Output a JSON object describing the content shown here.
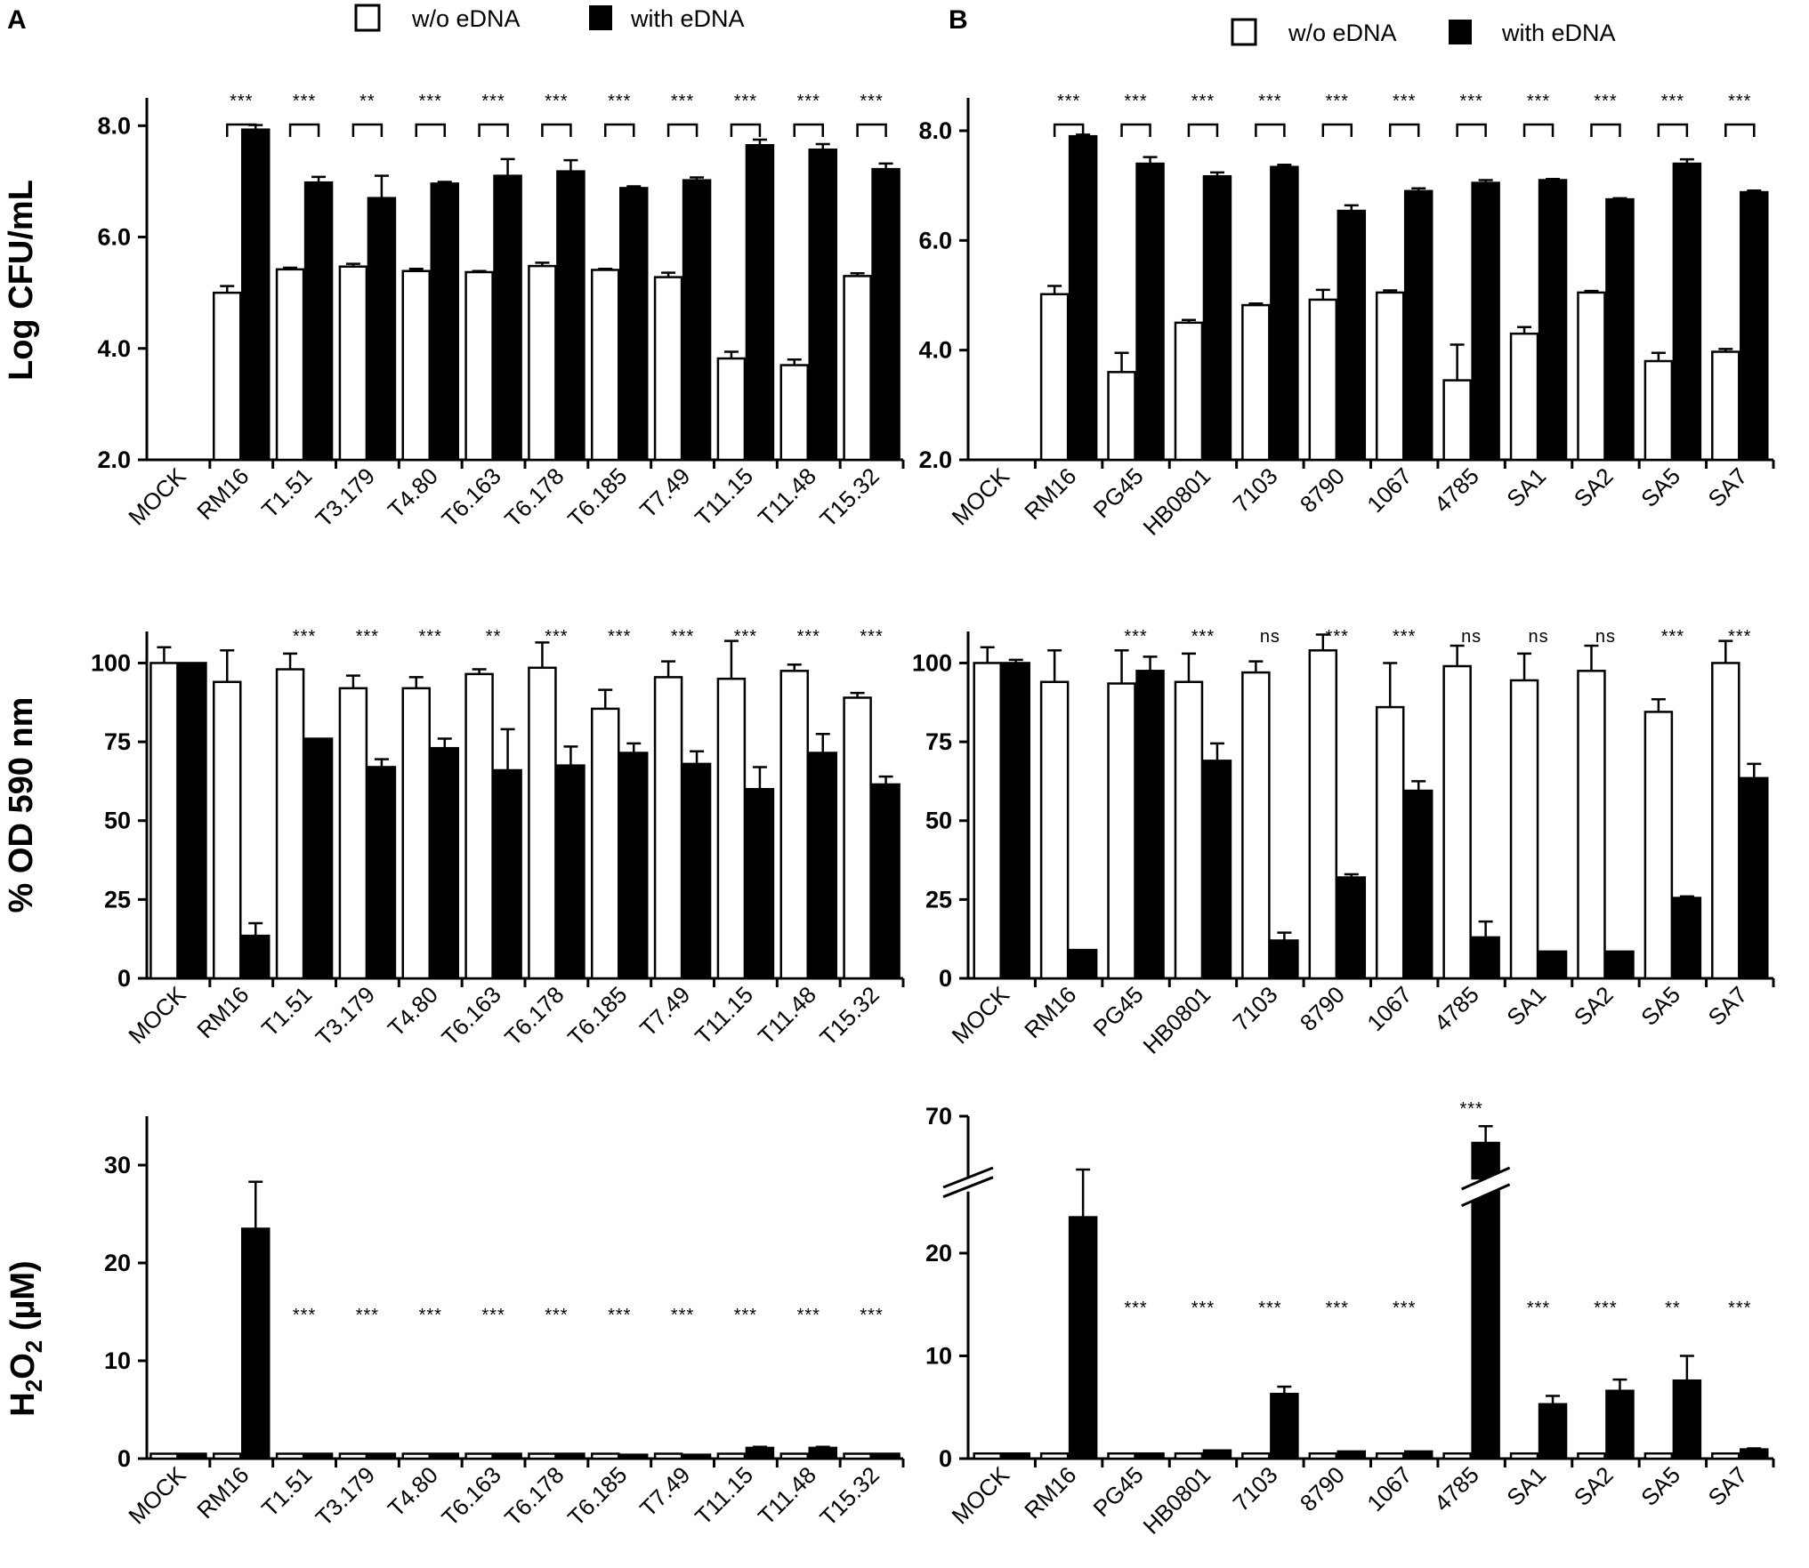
{
  "legend": {
    "without": "w/o eDNA",
    "with": "with eDNA"
  },
  "panels": {
    "A": "A",
    "B": "B"
  },
  "colors": {
    "without_fill": "#ffffff",
    "with_fill": "#000000",
    "axis": "#000000"
  },
  "chart_data": [
    {
      "id": "A-cfu",
      "type": "bar",
      "panel": "A",
      "ylabel": "Log CFU/mL",
      "ylim": [
        2,
        8.5
      ],
      "yticks": [
        2,
        4,
        6,
        8
      ],
      "ytick_labels": [
        "2.0",
        "4.0",
        "6.0",
        "8.0"
      ],
      "categories": [
        "MOCK",
        "RM16",
        "T1.51",
        "T3.179",
        "T4.80",
        "T6.163",
        "T6.178",
        "T6.185",
        "T7.49",
        "T11.15",
        "T11.48",
        "T15.32"
      ],
      "series": [
        {
          "name": "w/o eDNA",
          "values": [
            null,
            5.0,
            5.42,
            5.47,
            5.39,
            5.37,
            5.48,
            5.41,
            5.28,
            3.82,
            3.7,
            5.3
          ],
          "errors": [
            0,
            0.12,
            0.03,
            0.05,
            0.04,
            0.02,
            0.06,
            0.02,
            0.08,
            0.12,
            0.1,
            0.05
          ]
        },
        {
          "name": "with eDNA",
          "values": [
            null,
            7.93,
            6.98,
            6.7,
            6.96,
            7.1,
            7.18,
            6.88,
            7.02,
            7.65,
            7.57,
            7.22
          ],
          "errors": [
            0,
            0.08,
            0.1,
            0.4,
            0.03,
            0.3,
            0.2,
            0.03,
            0.05,
            0.1,
            0.1,
            0.1
          ]
        }
      ],
      "significance": {
        "position": "brackets",
        "labels": [
          "",
          "***",
          "***",
          "**",
          "***",
          "***",
          "***",
          "***",
          "***",
          "***",
          "***",
          "***"
        ]
      }
    },
    {
      "id": "B-cfu",
      "type": "bar",
      "panel": "B",
      "ylabel": "",
      "ylim": [
        2,
        8.6
      ],
      "yticks": [
        2,
        4,
        6,
        8
      ],
      "ytick_labels": [
        "2.0",
        "4.0",
        "6.0",
        "8.0"
      ],
      "categories": [
        "MOCK",
        "RM16",
        "PG45",
        "HB0801",
        "7103",
        "8790",
        "1067",
        "4785",
        "SA1",
        "SA2",
        "SA5",
        "SA7"
      ],
      "series": [
        {
          "name": "w/o eDNA",
          "values": [
            null,
            5.02,
            3.6,
            4.5,
            4.82,
            4.92,
            5.05,
            3.45,
            4.3,
            5.05,
            3.8,
            3.97
          ],
          "errors": [
            0,
            0.15,
            0.35,
            0.05,
            0.03,
            0.18,
            0.04,
            0.65,
            0.12,
            0.03,
            0.15,
            0.05
          ]
        },
        {
          "name": "with eDNA",
          "values": [
            null,
            7.9,
            7.4,
            7.17,
            7.34,
            6.54,
            6.9,
            7.05,
            7.1,
            6.75,
            7.4,
            6.88
          ],
          "errors": [
            0,
            0.03,
            0.12,
            0.07,
            0.04,
            0.1,
            0.05,
            0.05,
            0.02,
            0.02,
            0.08,
            0.03
          ]
        }
      ],
      "significance": {
        "position": "brackets",
        "labels": [
          "",
          "***",
          "***",
          "***",
          "***",
          "***",
          "***",
          "***",
          "***",
          "***",
          "***",
          "***"
        ]
      }
    },
    {
      "id": "A-od",
      "type": "bar",
      "panel": "A",
      "ylabel": "% OD 590 nm",
      "ylim": [
        0,
        110
      ],
      "yticks": [
        0,
        25,
        50,
        75,
        100
      ],
      "ytick_labels": [
        "0",
        "25",
        "50",
        "75",
        "100"
      ],
      "categories": [
        "MOCK",
        "RM16",
        "T1.51",
        "T3.179",
        "T4.80",
        "T6.163",
        "T6.178",
        "T6.185",
        "T7.49",
        "T11.15",
        "T11.48",
        "T15.32"
      ],
      "series": [
        {
          "name": "w/o eDNA",
          "values": [
            100,
            94,
            98,
            92,
            92,
            96.5,
            98.5,
            85.5,
            95.5,
            95,
            97.5,
            89
          ],
          "errors": [
            5,
            10,
            5,
            4,
            3.5,
            1.5,
            8,
            6,
            5,
            12,
            2,
            1.5
          ]
        },
        {
          "name": "with eDNA",
          "values": [
            100,
            13.5,
            76,
            67,
            73,
            66,
            67.5,
            71.5,
            68,
            60,
            71.5,
            61.5
          ],
          "errors": [
            0,
            4,
            0,
            2.5,
            3,
            13,
            6,
            3,
            4,
            7,
            6,
            2.5
          ]
        }
      ],
      "significance": {
        "position": "top",
        "labels": [
          "",
          "",
          "***",
          "***",
          "***",
          "**",
          "***",
          "***",
          "***",
          "***",
          "***",
          "***"
        ]
      }
    },
    {
      "id": "B-od",
      "type": "bar",
      "panel": "B",
      "ylabel": "",
      "ylim": [
        0,
        110
      ],
      "yticks": [
        0,
        25,
        50,
        75,
        100
      ],
      "ytick_labels": [
        "0",
        "25",
        "50",
        "75",
        "100"
      ],
      "categories": [
        "MOCK",
        "RM16",
        "PG45",
        "HB0801",
        "7103",
        "8790",
        "1067",
        "4785",
        "SA1",
        "SA2",
        "SA5",
        "SA7"
      ],
      "series": [
        {
          "name": "w/o eDNA",
          "values": [
            100,
            94,
            93.5,
            94,
            97,
            104,
            86,
            99,
            94.5,
            97.5,
            84.5,
            100
          ],
          "errors": [
            5,
            10,
            10.5,
            9,
            3.5,
            5,
            14,
            6.5,
            8.5,
            8,
            4,
            7
          ]
        },
        {
          "name": "with eDNA",
          "values": [
            100,
            9,
            97.5,
            69,
            12,
            32,
            59.5,
            13,
            8.5,
            8.5,
            25.5,
            63.5
          ],
          "errors": [
            1,
            0,
            4.5,
            5.5,
            2.5,
            1,
            3,
            5,
            0,
            0,
            0.5,
            4.5
          ]
        }
      ],
      "significance": {
        "position": "top",
        "labels": [
          "",
          "",
          "***",
          "***",
          "ns",
          "***",
          "***",
          "ns",
          "ns",
          "ns",
          "***",
          "***"
        ]
      }
    },
    {
      "id": "A-h2o2",
      "type": "bar",
      "panel": "A",
      "ylabel": "H2O2 (µM)",
      "ylim": [
        0,
        35
      ],
      "yticks": [
        0,
        10,
        20,
        30
      ],
      "ytick_labels": [
        "0",
        "10",
        "20",
        "30"
      ],
      "categories": [
        "MOCK",
        "RM16",
        "T1.51",
        "T3.179",
        "T4.80",
        "T6.163",
        "T6.178",
        "T6.185",
        "T7.49",
        "T11.15",
        "T11.48",
        "T15.32"
      ],
      "series": [
        {
          "name": "w/o eDNA",
          "values": [
            0.5,
            0.5,
            0.5,
            0.5,
            0.5,
            0.5,
            0.5,
            0.5,
            0.5,
            0.5,
            0.5,
            0.5
          ],
          "errors": [
            0,
            0,
            0,
            0,
            0,
            0,
            0,
            0,
            0,
            0,
            0,
            0
          ]
        },
        {
          "name": "with eDNA",
          "values": [
            0.5,
            23.5,
            0.5,
            0.5,
            0.5,
            0.5,
            0.5,
            0.4,
            0.4,
            1.1,
            1.1,
            0.5
          ],
          "errors": [
            0,
            4.8,
            0,
            0,
            0,
            0,
            0,
            0,
            0,
            0.1,
            0.1,
            0
          ]
        }
      ],
      "significance": {
        "position": "value",
        "value": 15,
        "labels": [
          "",
          "",
          "***",
          "***",
          "***",
          "***",
          "***",
          "***",
          "***",
          "***",
          "***",
          "***"
        ]
      }
    },
    {
      "id": "B-h2o2",
      "type": "bar",
      "panel": "B",
      "ylabel": "",
      "ylim": [
        0,
        70
      ],
      "yticks": [
        0,
        10,
        20,
        70
      ],
      "ytick_labels": [
        "0",
        "10",
        "20",
        "70"
      ],
      "axis_break": true,
      "categories": [
        "MOCK",
        "RM16",
        "PG45",
        "HB0801",
        "7103",
        "8790",
        "1067",
        "4785",
        "SA1",
        "SA2",
        "SA5",
        "SA7"
      ],
      "series": [
        {
          "name": "w/o eDNA",
          "values": [
            0.5,
            0.5,
            0.5,
            0.5,
            0.5,
            0.5,
            0.5,
            0.5,
            0.5,
            0.5,
            0.5,
            0.5
          ],
          "errors": [
            0,
            0,
            0,
            0,
            0,
            0,
            0,
            0,
            0,
            0,
            0,
            0
          ]
        },
        {
          "name": "with eDNA",
          "values": [
            0.5,
            23.5,
            0.5,
            0.8,
            6.3,
            0.7,
            0.7,
            66,
            5.3,
            6.6,
            7.6,
            0.9
          ],
          "errors": [
            0,
            5.5,
            0,
            0,
            0.7,
            0,
            0,
            2.5,
            0.8,
            1.1,
            2.4,
            0.1
          ]
        }
      ],
      "significance": {
        "position": "value",
        "value": 15,
        "top_index": 7,
        "labels": [
          "",
          "",
          "***",
          "***",
          "***",
          "***",
          "***",
          "***",
          "***",
          "***",
          "**",
          "***"
        ]
      }
    }
  ]
}
